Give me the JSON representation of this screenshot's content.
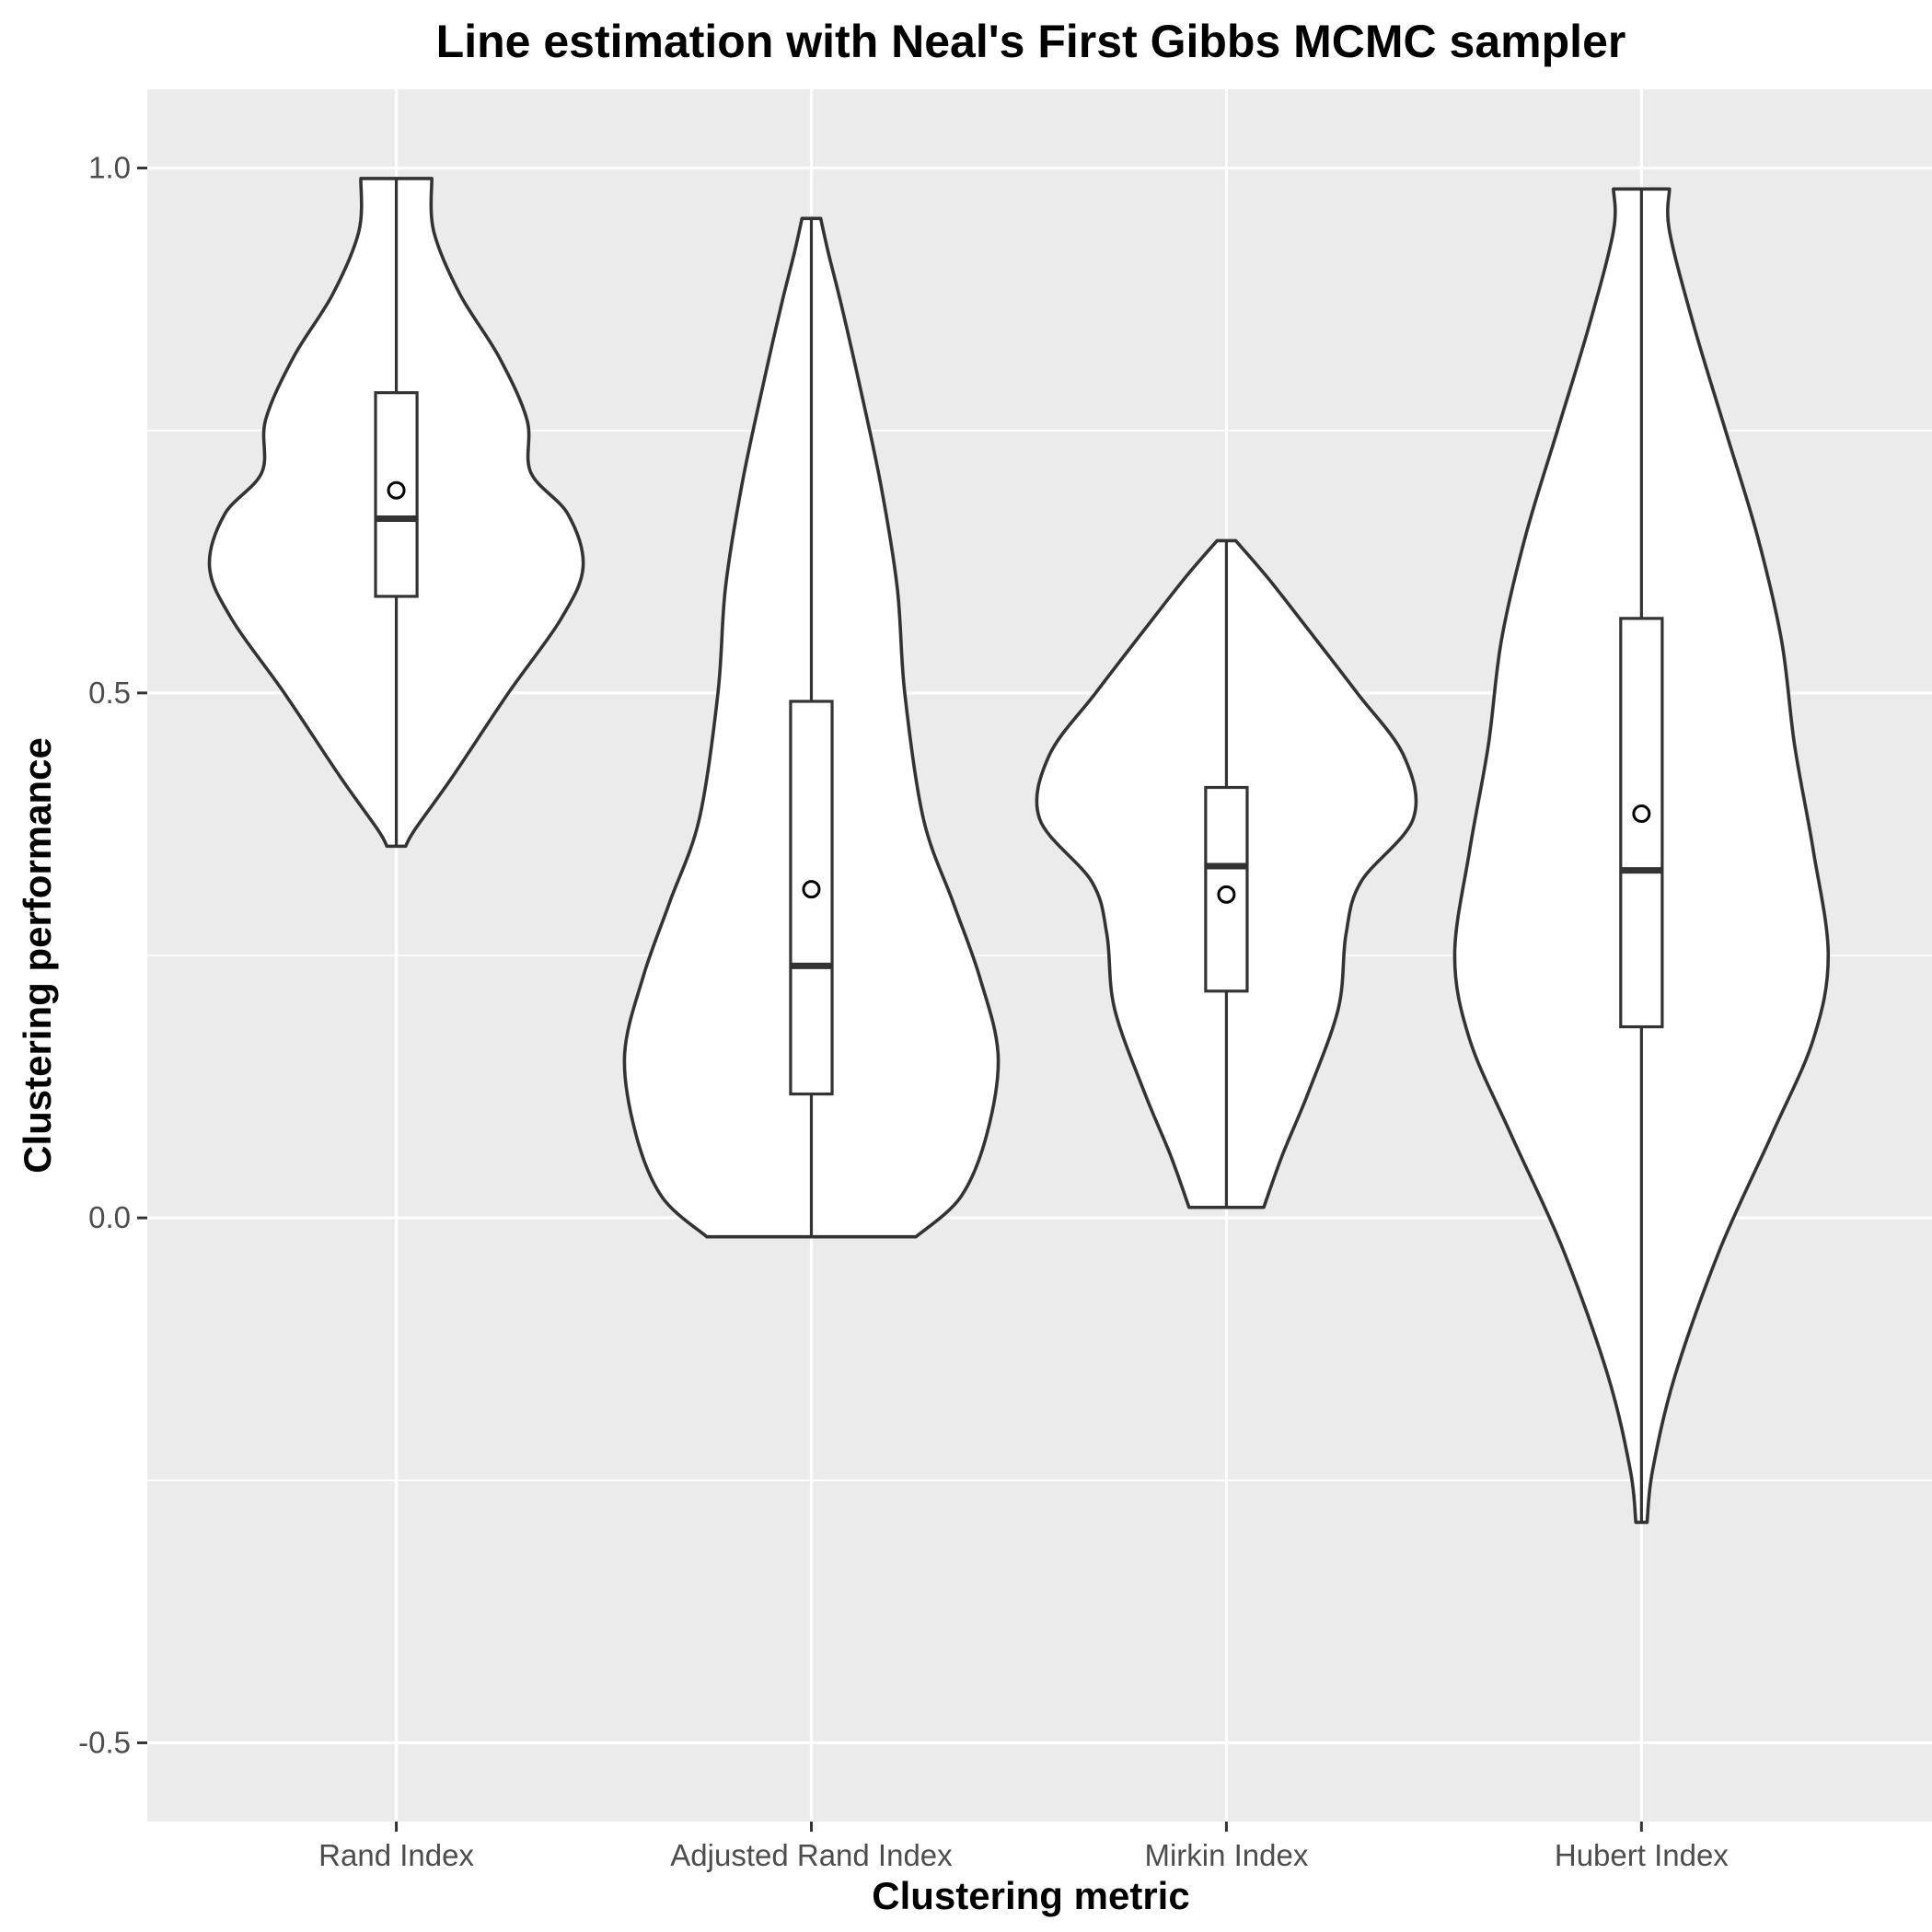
{
  "chart_data": {
    "type": "violin",
    "title": "Line estimation with Neal's First Gibbs MCMC sampler",
    "xlabel": "Clustering metric",
    "ylabel": "Clustering performance",
    "ylim": [
      -0.575,
      1.075
    ],
    "yticks": [
      {
        "value": -0.5,
        "label": "-0.5"
      },
      {
        "value": 0.0,
        "label": "0.0"
      },
      {
        "value": 0.5,
        "label": "0.5"
      },
      {
        "value": 1.0,
        "label": "1.0"
      }
    ],
    "y_minor_gridlines": [
      -0.25,
      0.25,
      0.75
    ],
    "grid": true,
    "colors": {
      "panel": "#ebebeb",
      "violin_fill": "#ffffff",
      "outline": "#333333"
    },
    "categories": [
      "Rand Index",
      "Adjusted Rand Index",
      "Mirkin Index",
      "Hubert Index"
    ],
    "series": [
      {
        "category": "Rand Index",
        "min": 0.354,
        "q1": 0.592,
        "median": 0.666,
        "q3": 0.786,
        "max": 0.99,
        "mean": 0.693,
        "density": [
          [
            0.354,
            0.05
          ],
          [
            0.37,
            0.1
          ],
          [
            0.42,
            0.3
          ],
          [
            0.5,
            0.6
          ],
          [
            0.57,
            0.88
          ],
          [
            0.62,
            1.0
          ],
          [
            0.67,
            0.92
          ],
          [
            0.71,
            0.72
          ],
          [
            0.76,
            0.7
          ],
          [
            0.82,
            0.55
          ],
          [
            0.88,
            0.34
          ],
          [
            0.94,
            0.2
          ],
          [
            0.99,
            0.19
          ]
        ]
      },
      {
        "category": "Adjusted Rand Index",
        "min": -0.018,
        "q1": 0.118,
        "median": 0.24,
        "q3": 0.492,
        "max": 0.952,
        "mean": 0.313,
        "density": [
          [
            -0.018,
            0.56
          ],
          [
            0.02,
            0.8
          ],
          [
            0.08,
            0.94
          ],
          [
            0.155,
            1.0
          ],
          [
            0.23,
            0.9
          ],
          [
            0.3,
            0.76
          ],
          [
            0.38,
            0.6
          ],
          [
            0.5,
            0.5
          ],
          [
            0.6,
            0.46
          ],
          [
            0.7,
            0.37
          ],
          [
            0.8,
            0.25
          ],
          [
            0.87,
            0.16
          ],
          [
            0.92,
            0.09
          ],
          [
            0.952,
            0.05
          ]
        ]
      },
      {
        "category": "Mirkin Index",
        "min": 0.01,
        "q1": 0.216,
        "median": 0.335,
        "q3": 0.41,
        "max": 0.645,
        "mean": 0.308,
        "density": [
          [
            0.01,
            0.2
          ],
          [
            0.06,
            0.3
          ],
          [
            0.12,
            0.44
          ],
          [
            0.2,
            0.6
          ],
          [
            0.27,
            0.64
          ],
          [
            0.32,
            0.72
          ],
          [
            0.38,
            1.0
          ],
          [
            0.44,
            0.95
          ],
          [
            0.5,
            0.7
          ],
          [
            0.56,
            0.44
          ],
          [
            0.61,
            0.22
          ],
          [
            0.645,
            0.05
          ]
        ]
      },
      {
        "category": "Hubert Index",
        "min": -0.29,
        "q1": 0.182,
        "median": 0.331,
        "q3": 0.571,
        "max": 0.98,
        "mean": 0.385,
        "density": [
          [
            -0.29,
            0.03
          ],
          [
            -0.24,
            0.06
          ],
          [
            -0.15,
            0.18
          ],
          [
            -0.03,
            0.42
          ],
          [
            0.08,
            0.7
          ],
          [
            0.17,
            0.92
          ],
          [
            0.25,
            1.0
          ],
          [
            0.35,
            0.92
          ],
          [
            0.45,
            0.82
          ],
          [
            0.55,
            0.75
          ],
          [
            0.65,
            0.62
          ],
          [
            0.75,
            0.45
          ],
          [
            0.85,
            0.28
          ],
          [
            0.94,
            0.15
          ],
          [
            0.98,
            0.15
          ]
        ]
      }
    ]
  }
}
